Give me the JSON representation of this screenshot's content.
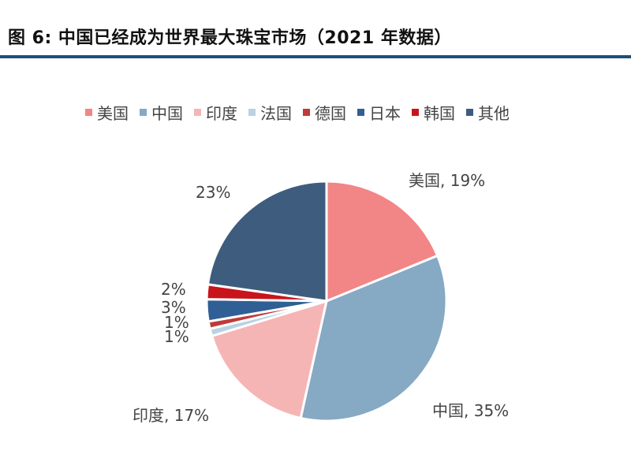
{
  "title": "图 6: 中国已经成为世界最大珠宝市场（2021 年数据）",
  "chart_data": {
    "type": "pie",
    "series": [
      {
        "name": "美国",
        "value": 19,
        "color": "#f28586",
        "label": "美国, 19%"
      },
      {
        "name": "中国",
        "value": 35,
        "color": "#86a9c4",
        "label": "中国, 35%"
      },
      {
        "name": "印度",
        "value": 17,
        "color": "#f6b5b5",
        "label": "印度, 17%"
      },
      {
        "name": "法国",
        "value": 1,
        "color": "#b8d2e3",
        "label": "1%"
      },
      {
        "name": "德国",
        "value": 1,
        "color": "#c0393b",
        "label": "1%"
      },
      {
        "name": "日本",
        "value": 3,
        "color": "#2f5f94",
        "label": "3%"
      },
      {
        "name": "韩国",
        "value": 2,
        "color": "#c8141b",
        "label": "2%"
      },
      {
        "name": "其他",
        "value": 23,
        "color": "#3e5c7e",
        "label": "23%"
      }
    ],
    "legend_position": "top"
  }
}
